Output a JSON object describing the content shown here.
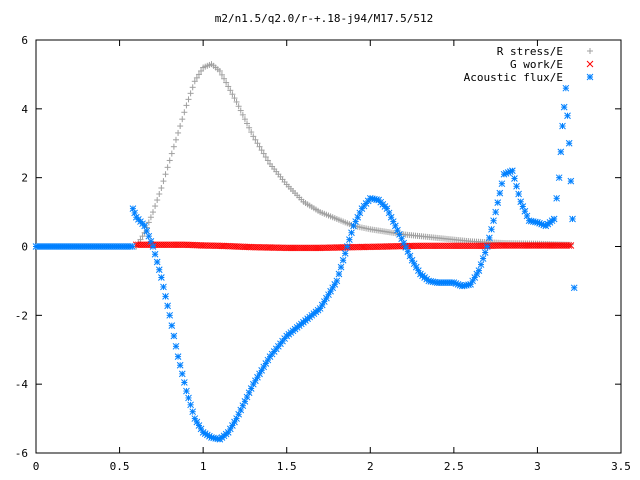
{
  "chart_data": {
    "type": "scatter",
    "title": "m2/n1.5/q2.0/r-+.18-j94/M17.5/512",
    "xlabel": "",
    "ylabel": "",
    "xlim": [
      0,
      3.5
    ],
    "ylim": [
      -6,
      6
    ],
    "x_ticks": [
      0,
      0.5,
      1,
      1.5,
      2,
      2.5,
      3,
      3.5
    ],
    "x_tick_labels": [
      "0",
      "0.5",
      "1",
      "1.5",
      "2",
      "2.5",
      "3",
      "3.5"
    ],
    "y_ticks": [
      -6,
      -4,
      -2,
      0,
      2,
      4,
      6
    ],
    "y_tick_labels": [
      "-6",
      "-4",
      "-2",
      "0",
      "2",
      "4",
      "6"
    ],
    "grid": false,
    "legend_position": "top-right",
    "series": [
      {
        "name": "R stress/E",
        "marker": "+",
        "color": "#a0a0a0",
        "x": [
          0.6,
          0.65,
          0.7,
          0.75,
          0.8,
          0.85,
          0.9,
          0.95,
          1.0,
          1.05,
          1.1,
          1.2,
          1.3,
          1.4,
          1.5,
          1.6,
          1.7,
          1.8,
          1.9,
          2.0,
          2.2,
          2.4,
          2.6,
          2.8,
          3.0,
          3.2
        ],
        "y": [
          0.0,
          0.4,
          1.0,
          1.7,
          2.5,
          3.3,
          4.1,
          4.8,
          5.2,
          5.3,
          5.1,
          4.2,
          3.2,
          2.4,
          1.8,
          1.3,
          1.0,
          0.8,
          0.6,
          0.5,
          0.35,
          0.25,
          0.15,
          0.1,
          0.08,
          0.05
        ]
      },
      {
        "name": "G work/E",
        "marker": "x",
        "color": "#ff0000",
        "x": [
          0.6,
          0.7,
          0.8,
          0.9,
          1.0,
          1.1,
          1.2,
          1.3,
          1.4,
          1.5,
          1.6,
          1.7,
          1.8,
          1.9,
          2.0,
          2.1,
          2.2,
          2.3,
          2.4,
          2.5,
          2.6,
          2.7,
          2.8,
          2.9,
          3.0,
          3.1,
          3.2
        ],
        "y": [
          0.05,
          0.05,
          0.05,
          0.05,
          0.03,
          0.02,
          0.0,
          -0.02,
          -0.03,
          -0.04,
          -0.04,
          -0.04,
          -0.03,
          -0.02,
          -0.01,
          0.0,
          0.01,
          0.02,
          0.02,
          0.02,
          0.02,
          0.02,
          0.03,
          0.03,
          0.03,
          0.03,
          0.03
        ]
      },
      {
        "name": "Acoustic flux/E",
        "marker": "*",
        "color": "#0080ff",
        "x": [
          0.58,
          0.6,
          0.65,
          0.7,
          0.75,
          0.8,
          0.85,
          0.9,
          0.95,
          1.0,
          1.05,
          1.1,
          1.15,
          1.2,
          1.3,
          1.4,
          1.5,
          1.6,
          1.7,
          1.8,
          1.85,
          1.9,
          1.95,
          2.0,
          2.05,
          2.1,
          2.15,
          2.2,
          2.25,
          2.3,
          2.35,
          2.4,
          2.45,
          2.5,
          2.55,
          2.6,
          2.65,
          2.7,
          2.75,
          2.8,
          2.85,
          2.9,
          2.95,
          3.0,
          3.05,
          3.1,
          3.13,
          3.15,
          3.17,
          3.19,
          3.21,
          3.22
        ],
        "y": [
          1.1,
          0.85,
          0.6,
          0.0,
          -0.9,
          -2.0,
          -3.2,
          -4.2,
          -5.0,
          -5.4,
          -5.55,
          -5.6,
          -5.4,
          -5.0,
          -4.0,
          -3.2,
          -2.6,
          -2.2,
          -1.8,
          -1.0,
          -0.2,
          0.6,
          1.1,
          1.4,
          1.35,
          1.1,
          0.6,
          0.1,
          -0.4,
          -0.8,
          -1.0,
          -1.05,
          -1.05,
          -1.05,
          -1.15,
          -1.1,
          -0.7,
          0.0,
          1.0,
          2.1,
          2.2,
          1.3,
          0.75,
          0.7,
          0.6,
          0.8,
          2.0,
          3.5,
          4.6,
          3.0,
          0.8,
          -1.2
        ]
      }
    ]
  }
}
